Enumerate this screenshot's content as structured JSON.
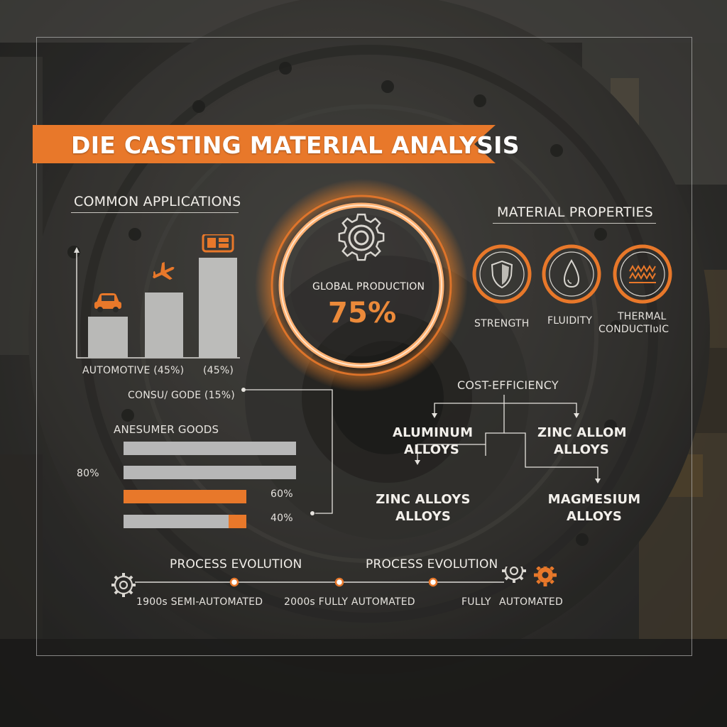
{
  "title": "DIE CASTING MATERIAL ANALYSIS",
  "colors": {
    "accent": "#e8782a",
    "bar_gray": "#b7b7b7",
    "text": "#eae7e2"
  },
  "applications": {
    "header": "COMMON APPLICATIONS",
    "bars": [
      {
        "icon": "car-icon",
        "value": 45
      },
      {
        "icon": "airplane-icon",
        "value": 70
      },
      {
        "icon": "electronics-icon",
        "value": 110
      }
    ],
    "label_automotive": "AUTOMOTIVE (45%)",
    "label_second": "(45%)",
    "label_consumer": "CONSU/ GODE (15%)"
  },
  "consumer": {
    "header": "ANESUMER GOODS",
    "label_80": "80%",
    "label_60": "60%",
    "label_40": "40%",
    "bars": [
      {
        "gray": 1.0,
        "orange": 0.0
      },
      {
        "gray": 1.0,
        "orange": 0.0
      },
      {
        "gray": 0.0,
        "orange": 0.71
      },
      {
        "gray": 0.6,
        "orange": 0.71
      }
    ]
  },
  "center": {
    "label": "GLOBAL PRODUCTION",
    "value": "75%",
    "icon": "gear-icon"
  },
  "properties": {
    "header": "MATERIAL PROPERTIES",
    "items": [
      {
        "icon": "shield-icon",
        "label": "STRENGTH"
      },
      {
        "icon": "droplet-icon",
        "label": "FLUIDITY"
      },
      {
        "icon": "heat-wave-icon",
        "label_line1": "THERMAL",
        "label_line2": "CONDUCTIʋIC"
      }
    ]
  },
  "flow": {
    "root": "COST-EFFICIENCY",
    "aluminum_1": "ALUMINUM",
    "aluminum_2": "ALLOYS",
    "zinc_allom_1": "ZINC ALLOM",
    "zinc_allom_2": "ALLOYS",
    "zinc_alloys_1": "ZINC ALLOYS",
    "zinc_alloys_2": "ALLOYS",
    "magnesium_1": "MAGMESIUM",
    "magnesium_2": "ALLOYS"
  },
  "timeline": {
    "header_left": "PROCESS EVOLUTION",
    "header_right": "PROCESS EVOLUTION",
    "label_1900s": "1900s SEMI-AUTOMATED",
    "label_2000s": "2000s FULLY AUTOMATED",
    "label_fully": "FULLY",
    "label_automated": "AUTOMATED"
  }
}
